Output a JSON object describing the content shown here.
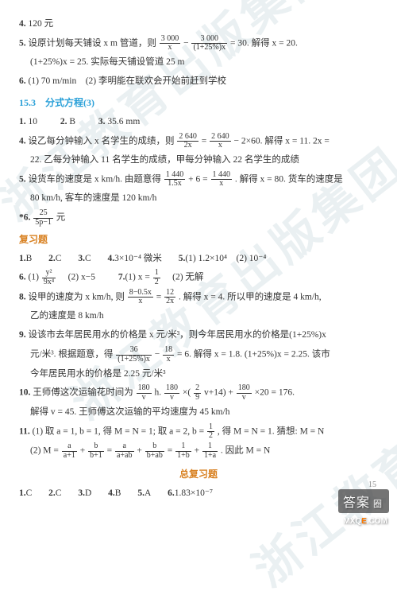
{
  "colors": {
    "text": "#333333",
    "section_blue": "#2aa0d8",
    "review_orange": "#d88020",
    "watermark": "rgba(180,200,210,0.28)",
    "background": "#ffffff"
  },
  "typography": {
    "body_font": "SimSun",
    "body_size_pt": 8.5,
    "title_size_pt": 9,
    "line_height": 1.9
  },
  "watermark_text": "浙江教育出版集团",
  "page_number": "15",
  "stamp": {
    "text": "答案",
    "badge": "圈"
  },
  "footer_url_parts": [
    "MXQ",
    "E",
    ".COM"
  ],
  "items_top": [
    {
      "n": "4.",
      "text": "120 元"
    },
    {
      "n": "5.",
      "parts": [
        "设原计划每天铺设 x m 管道，则 ",
        {
          "frac": [
            "3 000",
            "x"
          ]
        },
        " − ",
        {
          "frac": [
            "3 000",
            "(1+25%)x"
          ]
        },
        " = 30. 解得 x = 20."
      ],
      "cont": "(1+25%)x = 25. 实际每天铺设管道 25 m"
    },
    {
      "n": "6.",
      "text": "(1) 70 m/min　(2) 李明能在联欢会开始前赶到学校"
    }
  ],
  "section_title": "15.3　分式方程(3)",
  "items_mid": [
    {
      "n": "1.",
      "text": "10",
      "n2": "2.",
      "text2": "B",
      "n3": "3.",
      "text3": "35.6 mm"
    },
    {
      "n": "4.",
      "parts": [
        "设乙每分钟输入 x 名学生的成绩，则 ",
        {
          "frac": [
            "2 640",
            "2x"
          ]
        },
        " = ",
        {
          "frac": [
            "2 640",
            "x"
          ]
        },
        " − 2×60. 解得 x = 11. 2x ="
      ],
      "cont": "22. 乙每分钟输入 11 名学生的成绩，甲每分钟输入 22 名学生的成绩"
    },
    {
      "n": "5.",
      "parts": [
        "设货车的速度是 x km/h. 由题意得 ",
        {
          "frac": [
            "1 440",
            "1.5x"
          ]
        },
        " + 6 = ",
        {
          "frac": [
            "1 440",
            "x"
          ]
        },
        ". 解得 x = 80. 货车的速度是"
      ],
      "cont": "80 km/h, 客车的速度是 120 km/h"
    },
    {
      "n": "*6.",
      "parts": [
        {
          "frac": [
            "25",
            "5p−1"
          ]
        },
        " 元"
      ]
    }
  ],
  "review_title": "复习题",
  "items_review": [
    {
      "row": [
        {
          "n": "1.",
          "t": "B"
        },
        {
          "n": "2.",
          "t": "C"
        },
        {
          "n": "3.",
          "t": "C"
        },
        {
          "n": "4.",
          "t": "3×10⁻⁴ 微米"
        },
        {
          "n": "5.",
          "t": "(1) 1.2×10⁴　(2) 10⁻⁴"
        }
      ]
    },
    {
      "n": "6.",
      "parts": [
        "(1) ",
        {
          "frac": [
            "y²",
            "9x⁴"
          ]
        },
        "　(2) x−5"
      ],
      "tail": [
        {
          "n": "7.",
          "t": "(1) x = "
        },
        {
          "frac": [
            "1",
            "2"
          ]
        },
        {
          "t": "　(2) 无解"
        }
      ]
    },
    {
      "n": "8.",
      "parts": [
        "设甲的速度为 x km/h, 则 ",
        {
          "frac": [
            "8−0.5x",
            "x"
          ]
        },
        " = ",
        {
          "frac": [
            "12",
            "2x"
          ]
        },
        ". 解得 x = 4. 所以甲的速度是 4 km/h,"
      ],
      "cont": "乙的速度是 8 km/h"
    },
    {
      "n": "9.",
      "text": "设该市去年居民用水的价格是 x 元/米³，则今年居民用水的价格是(1+25%)x",
      "cont_parts": [
        "元/米³. 根据题意，得 ",
        {
          "frac": [
            "36",
            "(1+25%)x"
          ]
        },
        " − ",
        {
          "frac": [
            "18",
            "x"
          ]
        },
        " = 6. 解得 x = 1.8. (1+25%)x = 2.25. 该市"
      ],
      "cont2": "今年居民用水的价格是 2.25 元/米³"
    },
    {
      "n": "10.",
      "parts": [
        "王师傅这次运输花时间为 ",
        {
          "frac": [
            "180",
            "v"
          ]
        },
        " h. ",
        {
          "frac": [
            "180",
            "v"
          ]
        },
        "×(",
        {
          "frac": [
            "2",
            "9"
          ]
        },
        "v+14) + ",
        {
          "frac": [
            "180",
            "v"
          ]
        },
        "×20 = 176."
      ],
      "cont": "解得 v = 45. 王师傅这次运输的平均速度为 45 km/h"
    },
    {
      "n": "11.",
      "parts": [
        "(1) 取 a = 1, b = 1, 得 M = N = 1; 取 a = 2, b = ",
        {
          "frac": [
            "1",
            "2"
          ]
        },
        ", 得 M = N = 1. 猜想: M = N"
      ],
      "cont_parts": [
        "(2) M = ",
        {
          "frac": [
            "a",
            "a+1"
          ]
        },
        " + ",
        {
          "frac": [
            "b",
            "b+1"
          ]
        },
        " = ",
        {
          "frac": [
            "a",
            "a+ab"
          ]
        },
        " + ",
        {
          "frac": [
            "b",
            "b+ab"
          ]
        },
        " = ",
        {
          "frac": [
            "1",
            "1+b"
          ]
        },
        " + ",
        {
          "frac": [
            "1",
            "1+a"
          ]
        },
        ". 因此 M = N"
      ]
    }
  ],
  "final_title": "总复习题",
  "items_final_row": [
    {
      "n": "1.",
      "t": "C"
    },
    {
      "n": "2.",
      "t": "C"
    },
    {
      "n": "3.",
      "t": "D"
    },
    {
      "n": "4.",
      "t": "B"
    },
    {
      "n": "5.",
      "t": "A"
    },
    {
      "n": "6.",
      "t": "1.83×10⁻⁷"
    }
  ]
}
